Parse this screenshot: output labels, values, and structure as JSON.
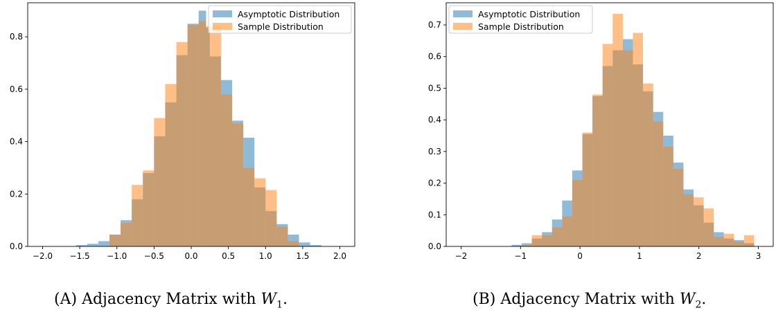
{
  "colors": {
    "asymptotic": "#1f77b4",
    "sample": "#ff7f0e",
    "asymptotic_alpha": 0.5,
    "sample_alpha": 0.5
  },
  "chart_data": [
    {
      "type": "bar",
      "panel": "A",
      "xlim": [
        -2.2,
        2.2
      ],
      "ylim": [
        0,
        0.93
      ],
      "xticks": [
        -2.0,
        -1.5,
        -1.0,
        -0.5,
        0.0,
        0.5,
        1.0,
        1.5,
        2.0
      ],
      "xtick_labels": [
        "−2.0",
        "−1.5",
        "−1.0",
        "−0.5",
        "0.0",
        "0.5",
        "1.0",
        "1.5",
        "2.0"
      ],
      "yticks": [
        0.0,
        0.2,
        0.4,
        0.6,
        0.8
      ],
      "ytick_labels": [
        "0.0",
        "0.2",
        "0.4",
        "0.6",
        "0.8"
      ],
      "legend_position": "top-right",
      "grid": false,
      "bin_edges": [
        -2.0,
        -1.85,
        -1.7,
        -1.55,
        -1.4,
        -1.25,
        -1.1,
        -0.95,
        -0.8,
        -0.65,
        -0.5,
        -0.35,
        -0.2,
        -0.05,
        0.1,
        0.2,
        0.25,
        0.4,
        0.55,
        0.7,
        0.85,
        1.0,
        1.15,
        1.3,
        1.45,
        1.6,
        1.75,
        1.9,
        2.0
      ],
      "series": [
        {
          "name": "Asymptotic Distribution",
          "values": [
            0,
            0,
            0,
            0.005,
            0.01,
            0.02,
            0.045,
            0.1,
            0.18,
            0.28,
            0.42,
            0.55,
            0.73,
            0.85,
            0.9,
            0.835,
            0.725,
            0.635,
            0.48,
            0.415,
            0.225,
            0.135,
            0.085,
            0.045,
            0.015,
            0.005,
            0,
            0
          ]
        },
        {
          "name": "Sample Distribution",
          "values": [
            0,
            0,
            0,
            0,
            0,
            0,
            0.045,
            0.09,
            0.235,
            0.29,
            0.49,
            0.62,
            0.78,
            0.845,
            0.86,
            0.84,
            0.84,
            0.58,
            0.47,
            0.3,
            0.26,
            0.215,
            0.075,
            0.02,
            0,
            0,
            0,
            0
          ]
        }
      ]
    },
    {
      "type": "bar",
      "panel": "B",
      "xlim": [
        -2.25,
        3.25
      ],
      "ylim": [
        0,
        0.77
      ],
      "xticks": [
        -2,
        -1,
        0,
        1,
        2,
        3
      ],
      "xtick_labels": [
        "−2",
        "−1",
        "0",
        "1",
        "2",
        "3"
      ],
      "yticks": [
        0.0,
        0.1,
        0.2,
        0.3,
        0.4,
        0.5,
        0.6,
        0.7
      ],
      "ytick_labels": [
        "0.0",
        "0.1",
        "0.2",
        "0.3",
        "0.4",
        "0.5",
        "0.6",
        "0.7"
      ],
      "legend_position": "top-left",
      "grid": false,
      "bin_edges": [
        -2.0,
        -1.83,
        -1.66,
        -1.49,
        -1.32,
        -1.15,
        -0.98,
        -0.81,
        -0.64,
        -0.47,
        -0.3,
        -0.13,
        0.04,
        0.21,
        0.38,
        0.55,
        0.72,
        0.89,
        1.06,
        1.23,
        1.4,
        1.57,
        1.74,
        1.91,
        2.08,
        2.25,
        2.42,
        2.59,
        2.76,
        2.93
      ],
      "series": [
        {
          "name": "Asymptotic Distribution",
          "values": [
            0,
            0,
            0,
            0,
            0,
            0.005,
            0.01,
            0.025,
            0.045,
            0.085,
            0.145,
            0.24,
            0.355,
            0.475,
            0.57,
            0.62,
            0.655,
            0.575,
            0.49,
            0.425,
            0.35,
            0.265,
            0.18,
            0.13,
            0.075,
            0.045,
            0.025,
            0.02,
            0.01
          ]
        },
        {
          "name": "Sample Distribution",
          "values": [
            0,
            0,
            0,
            0,
            0,
            0,
            0.005,
            0.035,
            0.035,
            0.06,
            0.095,
            0.21,
            0.36,
            0.48,
            0.64,
            0.735,
            0.62,
            0.675,
            0.515,
            0.395,
            0.315,
            0.245,
            0.165,
            0.155,
            0.12,
            0.03,
            0.04,
            0.015,
            0.035
          ]
        }
      ]
    }
  ],
  "captions": [
    {
      "label": "(A)",
      "text": "Adjacency Matrix with ",
      "var": "W",
      "sub": "1",
      "end": "."
    },
    {
      "label": "(B)",
      "text": "Adjacency Matrix with ",
      "var": "W",
      "sub": "2",
      "end": "."
    }
  ]
}
